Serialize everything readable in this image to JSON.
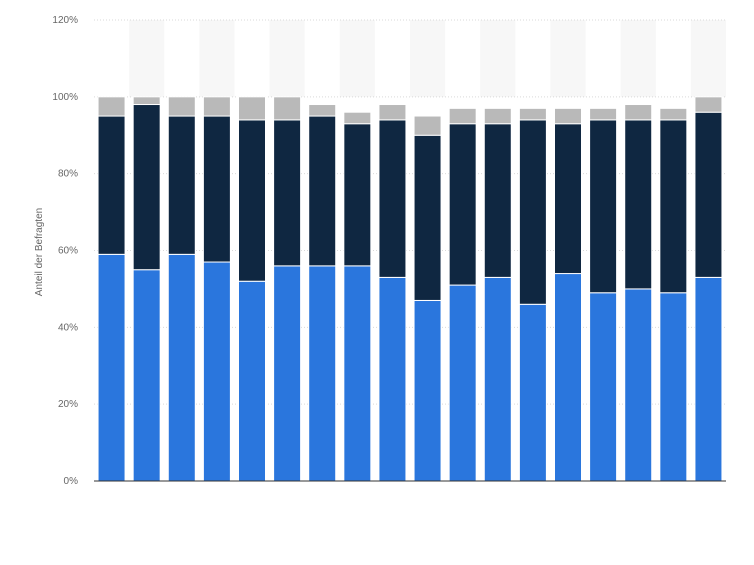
{
  "chart_data": {
    "type": "bar",
    "stacked": true,
    "title": "",
    "xlabel": "",
    "ylabel": "Anteil der Befragten",
    "ylim": [
      0,
      120
    ],
    "y_tick_labels": [
      "0%",
      "20%",
      "40%",
      "60%",
      "80%",
      "100%",
      "120%"
    ],
    "y_ticks": [
      0,
      20,
      40,
      60,
      80,
      100,
      120
    ],
    "grid": true,
    "legend": "none",
    "categories": [
      "",
      "",
      "",
      "",
      "",
      "",
      "",
      "",
      "",
      "",
      "",
      "",
      "",
      "",
      "",
      "",
      "",
      ""
    ],
    "series": [
      {
        "color": "#2A76DD",
        "values": [
          59,
          55,
          59,
          57,
          52,
          56,
          56,
          56,
          53,
          47,
          51,
          53,
          46,
          54,
          49,
          50,
          49,
          53
        ]
      },
      {
        "color": "#0F2741",
        "values": [
          36,
          43,
          36,
          38,
          42,
          38,
          39,
          37,
          41,
          43,
          42,
          40,
          48,
          39,
          45,
          44,
          45,
          43
        ]
      },
      {
        "color": "#B9B9B9",
        "values": [
          5,
          2,
          5,
          5,
          6,
          6,
          3,
          3,
          4,
          5,
          4,
          4,
          3,
          4,
          3,
          4,
          3,
          4
        ]
      }
    ]
  }
}
